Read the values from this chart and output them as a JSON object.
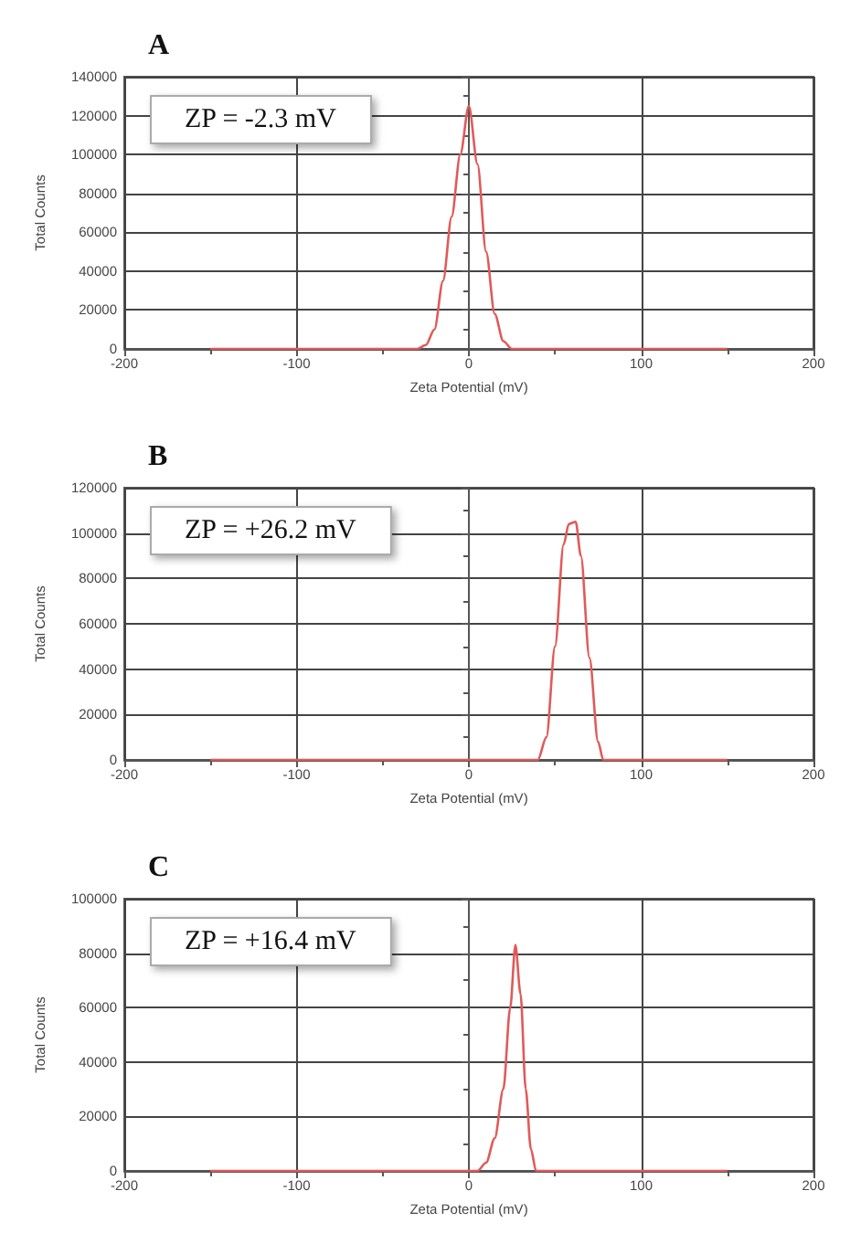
{
  "chart_data": [
    {
      "type": "line",
      "title": "A",
      "xlabel": "Zeta Potential (mV)",
      "ylabel": "Total Counts",
      "annotations": [
        "ZP = -2.3 mV"
      ],
      "color": "#e05a5a",
      "marker": "none",
      "grid": true,
      "x": [
        -150,
        -30,
        -25,
        -20,
        -15,
        -10,
        -5,
        0,
        5,
        10,
        15,
        20,
        25,
        150
      ],
      "values": [
        0,
        0,
        2000,
        10000,
        35000,
        68000,
        100000,
        125000,
        95000,
        50000,
        18000,
        4000,
        0,
        0
      ],
      "xlim": [
        -200,
        200
      ],
      "xticks": [
        -200,
        {
          "value": -150,
          "label": null
        },
        -100,
        {
          "value": -50,
          "label": null
        },
        0,
        {
          "value": 50,
          "label": null
        },
        100,
        {
          "value": 150,
          "label": null
        },
        200
      ],
      "ylim": [
        0,
        140000
      ],
      "yticks": [
        0,
        {
          "value": 10000,
          "label": null
        },
        20000,
        {
          "value": 30000,
          "label": null
        },
        40000,
        {
          "value": 50000,
          "label": null
        },
        60000,
        {
          "value": 70000,
          "label": null
        },
        80000,
        {
          "value": 90000,
          "label": null
        },
        100000,
        {
          "value": 110000,
          "label": null
        },
        120000,
        {
          "value": 130000,
          "label": null
        },
        140000
      ]
    },
    {
      "type": "line",
      "title": "B",
      "xlabel": "Zeta Potential (mV)",
      "ylabel": "Total Counts",
      "annotations": [
        "ZP = +26.2 mV"
      ],
      "color": "#e05a5a",
      "marker": "none",
      "grid": true,
      "x": [
        -150,
        40,
        45,
        50,
        55,
        58,
        62,
        65,
        70,
        75,
        78,
        150
      ],
      "values": [
        0,
        0,
        10000,
        50000,
        95000,
        104000,
        105000,
        90000,
        45000,
        8000,
        0,
        0
      ],
      "xlim": [
        -200,
        200
      ],
      "xticks": [
        -200,
        {
          "value": -150,
          "label": null
        },
        -100,
        {
          "value": -50,
          "label": null
        },
        0,
        {
          "value": 50,
          "label": null
        },
        100,
        {
          "value": 150,
          "label": null
        },
        200
      ],
      "ylim": [
        0,
        120000
      ],
      "yticks": [
        0,
        {
          "value": 10000,
          "label": null
        },
        20000,
        {
          "value": 30000,
          "label": null
        },
        40000,
        {
          "value": 50000,
          "label": null
        },
        60000,
        {
          "value": 70000,
          "label": null
        },
        80000,
        {
          "value": 90000,
          "label": null
        },
        100000,
        {
          "value": 110000,
          "label": null
        },
        120000
      ]
    },
    {
      "type": "line",
      "title": "C",
      "xlabel": "Zeta Potential (mV)",
      "ylabel": "Total Counts",
      "annotations": [
        "ZP = +16.4 mV"
      ],
      "color": "#e05a5a",
      "marker": "none",
      "grid": true,
      "x": [
        -150,
        5,
        10,
        15,
        20,
        24,
        27,
        30,
        33,
        36,
        39,
        150
      ],
      "values": [
        0,
        0,
        3000,
        12000,
        30000,
        60000,
        83000,
        65000,
        30000,
        8000,
        0,
        0
      ],
      "xlim": [
        -200,
        200
      ],
      "xticks": [
        -200,
        {
          "value": -150,
          "label": null
        },
        -100,
        {
          "value": -50,
          "label": null
        },
        0,
        {
          "value": 50,
          "label": null
        },
        100,
        {
          "value": 150,
          "label": null
        },
        200
      ],
      "ylim": [
        0,
        100000
      ],
      "yticks": [
        0,
        {
          "value": 10000,
          "label": null
        },
        20000,
        {
          "value": 30000,
          "label": null
        },
        40000,
        {
          "value": 50000,
          "label": null
        },
        60000,
        {
          "value": 70000,
          "label": null
        },
        80000,
        {
          "value": 90000,
          "label": null
        },
        100000
      ]
    }
  ]
}
